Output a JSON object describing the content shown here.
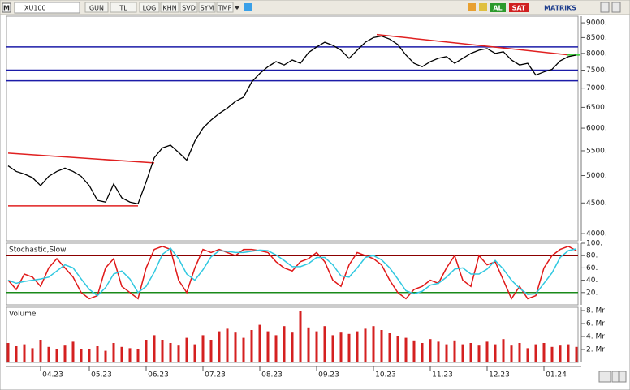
{
  "toolbar": {
    "symbol": "XU100",
    "buttons": [
      "GUN",
      "TL",
      "LOG",
      "KHN",
      "SVD",
      "SYM",
      "TMP"
    ],
    "buy": "AL",
    "sell": "SAT",
    "brand": "MATRiKS"
  },
  "chart_data": [
    {
      "type": "line",
      "log": true,
      "color": "#000000",
      "values": [
        5190,
        5080,
        5030,
        4960,
        4810,
        4985,
        5080,
        5145,
        5080,
        4985,
        4810,
        4545,
        4515,
        4840,
        4590,
        4515,
        4485,
        4880,
        5355,
        5560,
        5620,
        5465,
        5305,
        5710,
        6000,
        6190,
        6350,
        6480,
        6650,
        6760,
        7165,
        7405,
        7600,
        7750,
        7650,
        7800,
        7700,
        8025,
        8200,
        8350,
        8250,
        8100,
        7850,
        8100,
        8350,
        8500,
        8550,
        8450,
        8275,
        7950,
        7700,
        7600,
        7750,
        7850,
        7900,
        7700,
        7850,
        8000,
        8100,
        8150,
        8000,
        8050,
        7800,
        7650,
        7700,
        7360,
        7450,
        7525,
        7775,
        7900,
        7950
      ],
      "ylim": [
        3890,
        9230
      ],
      "yticks": [
        {
          "value": 4000,
          "label": "4000."
        },
        {
          "value": 4500,
          "label": "4500."
        },
        {
          "value": 5000,
          "label": "5000."
        },
        {
          "value": 5500,
          "label": "5500."
        },
        {
          "value": 6000,
          "label": "6000."
        },
        {
          "value": 6500,
          "label": "6500."
        },
        {
          "value": 7000,
          "label": "7000."
        },
        {
          "value": 7500,
          "label": "7500."
        },
        {
          "value": 8000,
          "label": "8000."
        },
        {
          "value": 8500,
          "label": "8500."
        },
        {
          "value": 9000,
          "label": "9000."
        }
      ],
      "hlines": [
        {
          "value": 8200,
          "color": "#1c1ca8"
        },
        {
          "value": 7500,
          "color": "#1c1ca8"
        },
        {
          "value": 7200,
          "color": "#1c1ca8"
        }
      ],
      "trendlines": [
        {
          "from": [
            0,
            5450
          ],
          "to": [
            18,
            5250
          ],
          "color": "#e02020"
        },
        {
          "from": [
            0,
            4450
          ],
          "to": [
            16,
            4450
          ],
          "color": "#e02020"
        },
        {
          "from": [
            45.4,
            8600
          ],
          "to": [
            69.2,
            7950
          ],
          "color": "#e02020"
        },
        {
          "from": [
            68.8,
            7950
          ],
          "to": [
            70.4,
            7950
          ],
          "color": "#30d030"
        }
      ]
    },
    {
      "type": "line",
      "title": "Stochastic,Slow",
      "series": [
        {
          "color": "#e01818",
          "values": [
            40,
            25,
            50,
            45,
            30,
            60,
            75,
            60,
            45,
            20,
            10,
            15,
            60,
            75,
            30,
            20,
            10,
            60,
            90,
            95,
            90,
            40,
            20,
            60,
            90,
            85,
            90,
            85,
            80,
            90,
            90,
            88,
            85,
            70,
            60,
            55,
            70,
            75,
            85,
            70,
            40,
            30,
            65,
            85,
            80,
            75,
            65,
            40,
            20,
            10,
            25,
            30,
            40,
            35,
            60,
            80,
            40,
            30,
            80,
            65,
            70,
            40,
            10,
            30,
            10,
            15,
            60,
            80,
            90,
            95,
            88
          ]
        },
        {
          "color": "#30c8e0",
          "values": [
            40,
            35,
            38,
            40,
            42,
            45,
            55,
            65,
            60,
            42,
            25,
            15,
            28,
            50,
            55,
            42,
            20,
            30,
            53,
            82,
            92,
            75,
            50,
            40,
            57,
            78,
            88,
            87,
            85,
            85,
            87,
            89,
            88,
            81,
            72,
            62,
            62,
            67,
            77,
            77,
            65,
            47,
            45,
            60,
            77,
            80,
            73,
            60,
            42,
            23,
            18,
            22,
            32,
            35,
            45,
            58,
            60,
            50,
            50,
            58,
            72,
            58,
            40,
            27,
            17,
            18,
            35,
            52,
            77,
            88,
            91
          ]
        }
      ],
      "ylim": [
        0,
        100
      ],
      "yticks": [
        {
          "value": 20,
          "label": "20."
        },
        {
          "value": 40,
          "label": "40."
        },
        {
          "value": 60,
          "label": "60."
        },
        {
          "value": 80,
          "label": "80."
        },
        {
          "value": 100,
          "label": "100."
        }
      ],
      "hlines": [
        {
          "value": 80,
          "color": "#8b0000"
        },
        {
          "value": 20,
          "color": "#1a8a1a"
        }
      ]
    },
    {
      "type": "bar",
      "title": "Volume",
      "color": "#d42020",
      "categories": [
        null,
        null,
        null,
        null,
        "04.23",
        null,
        null,
        null,
        null,
        null,
        "05.23",
        null,
        null,
        null,
        null,
        null,
        null,
        "06.23",
        null,
        null,
        null,
        null,
        null,
        null,
        "07.23",
        null,
        null,
        null,
        null,
        null,
        null,
        "08.23",
        null,
        null,
        null,
        null,
        null,
        null,
        "09.23",
        null,
        null,
        null,
        null,
        null,
        null,
        "10.23",
        null,
        null,
        null,
        null,
        null,
        null,
        "11.23",
        null,
        null,
        null,
        null,
        null,
        null,
        "12.23",
        null,
        null,
        null,
        null,
        null,
        null,
        "01.24",
        null,
        null,
        null,
        null
      ],
      "values": [
        3.0,
        2.5,
        2.8,
        2.2,
        3.5,
        2.4,
        2.0,
        2.6,
        3.2,
        2.1,
        2.0,
        2.5,
        1.8,
        3.0,
        2.4,
        2.2,
        2.0,
        3.5,
        4.2,
        3.5,
        3.0,
        2.6,
        3.8,
        2.8,
        4.2,
        3.5,
        4.8,
        5.2,
        4.6,
        3.8,
        5.0,
        5.8,
        4.8,
        4.2,
        5.6,
        4.6,
        8.0,
        5.4,
        4.8,
        5.6,
        4.2,
        4.6,
        4.4,
        4.8,
        5.2,
        5.6,
        5.0,
        4.5,
        4.0,
        3.8,
        3.4,
        3.0,
        3.6,
        3.2,
        2.8,
        3.4,
        2.8,
        3.0,
        2.6,
        3.2,
        2.8,
        3.6,
        2.6,
        3.0,
        2.2,
        2.8,
        3.0,
        2.4,
        2.6,
        2.8,
        2.4
      ],
      "ylim": [
        0,
        8.5
      ],
      "yticks": [
        {
          "value": 2,
          "label": "2. Mr"
        },
        {
          "value": 4,
          "label": "4. Mr"
        },
        {
          "value": 6,
          "label": "6. Mr"
        },
        {
          "value": 8,
          "label": "8. Mr"
        }
      ]
    }
  ]
}
